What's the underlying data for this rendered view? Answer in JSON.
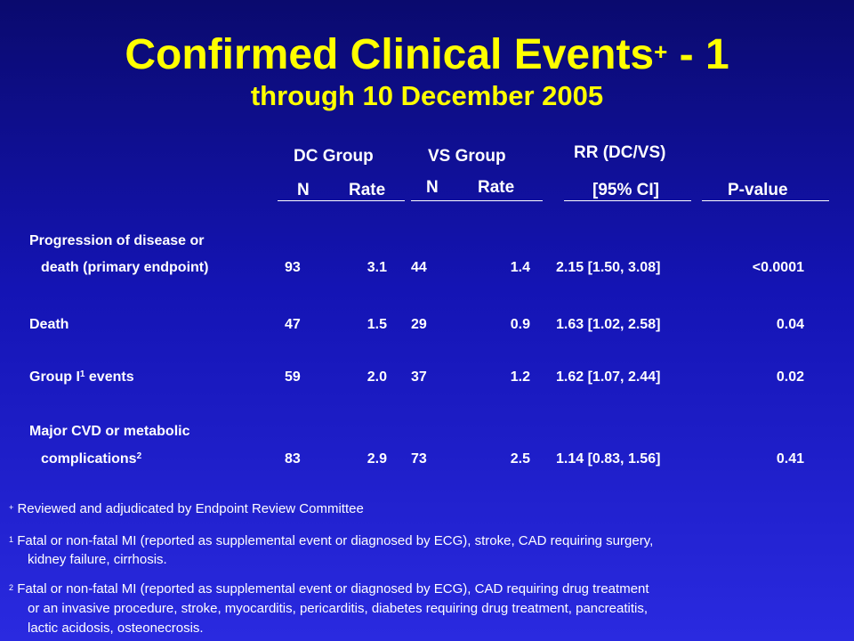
{
  "title": {
    "main": "Confirmed Clinical Events",
    "sup": "+",
    "suffix": " - 1"
  },
  "subtitle": "through 10 December 2005",
  "headers": {
    "dc_group": "DC Group",
    "vs_group": "VS Group",
    "rr": "RR (DC/VS)",
    "dc_n": "N",
    "dc_rate": "Rate",
    "vs_n": "N",
    "vs_rate": "Rate",
    "ci": "[95% CI]",
    "pvalue": "P-value"
  },
  "rows": [
    {
      "label1": "Progression of disease or",
      "label2": "death (primary endpoint)",
      "sup": "",
      "dc_n": "93",
      "dc_rate": "3.1",
      "vs_n": "44",
      "vs_rate": "1.4",
      "rr": "2.15 [1.50, 3.08]",
      "p": "<0.0001"
    },
    {
      "label1": "Death",
      "sup": "",
      "dc_n": "47",
      "dc_rate": "1.5",
      "vs_n": "29",
      "vs_rate": "0.9",
      "rr": "1.63 [1.02, 2.58]",
      "p": "0.04"
    },
    {
      "label1": "Group I",
      "sup": "1",
      "label1b": " events",
      "dc_n": "59",
      "dc_rate": "2.0",
      "vs_n": "37",
      "vs_rate": "1.2",
      "rr": "1.62 [1.07, 2.44]",
      "p": "0.02"
    },
    {
      "label1": "Major CVD or metabolic",
      "label2": "complications",
      "sup": "2",
      "dc_n": "83",
      "dc_rate": "2.9",
      "vs_n": "73",
      "vs_rate": "2.5",
      "rr": "1.14 [0.83, 1.56]",
      "p": "0.41"
    }
  ],
  "footnotes": [
    {
      "mark": "+",
      "lines": [
        "Reviewed and adjudicated by Endpoint Review Committee"
      ]
    },
    {
      "mark": "1",
      "lines": [
        "Fatal or non-fatal MI (reported as supplemental event or diagnosed by ECG), stroke, CAD requiring surgery,",
        "kidney failure, cirrhosis."
      ]
    },
    {
      "mark": "2",
      "lines": [
        "Fatal or non-fatal MI (reported as supplemental event or diagnosed by ECG), CAD requiring drug treatment",
        "or an invasive procedure, stroke, myocarditis, pericarditis, diabetes requiring drug treatment, pancreatitis,",
        "lactic acidosis, osteonecrosis."
      ]
    }
  ]
}
